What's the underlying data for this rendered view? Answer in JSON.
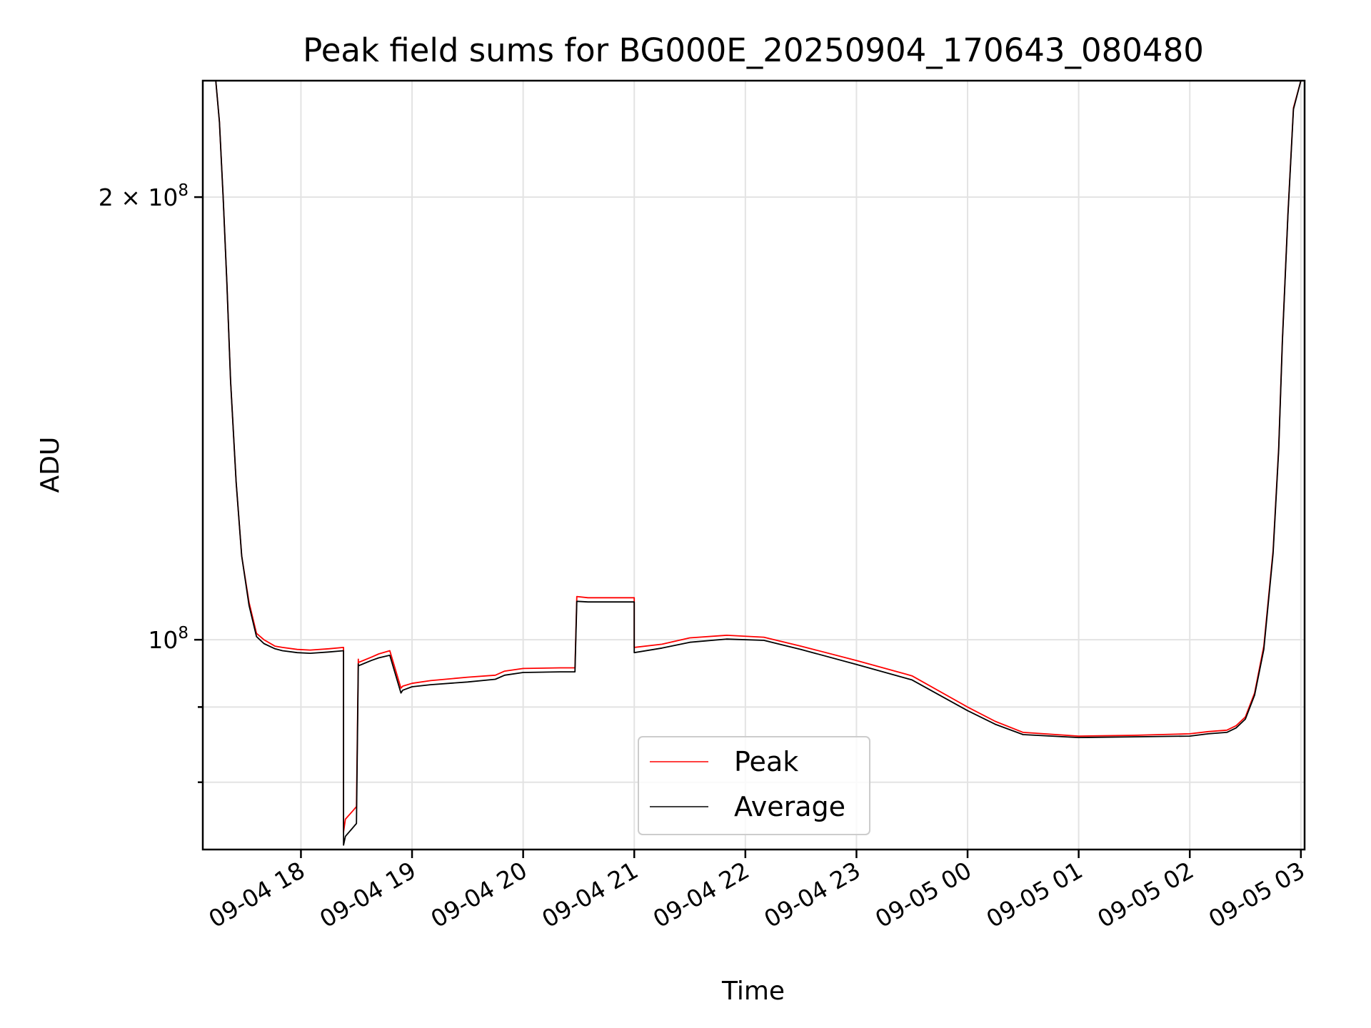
{
  "chart_data": {
    "type": "line",
    "title": "Peak field sums for BG000E_20250904_170643_080480",
    "xlabel": "Time",
    "ylabel": "ADU",
    "y_scale": "log",
    "grid": true,
    "legend_position": "lower center",
    "xlim": [
      "2025-09-04 17:07",
      "2025-09-05 03:02"
    ],
    "ylim": [
      72000000,
      240000000
    ],
    "x_ticks": [
      "09-04 18",
      "09-04 19",
      "09-04 20",
      "09-04 21",
      "09-04 22",
      "09-04 23",
      "09-05 00",
      "09-05 01",
      "09-05 02",
      "09-05 03"
    ],
    "x_tick_times": [
      "2025-09-04 18:00",
      "2025-09-04 19:00",
      "2025-09-04 20:00",
      "2025-09-04 21:00",
      "2025-09-04 22:00",
      "2025-09-04 23:00",
      "2025-09-05 00:00",
      "2025-09-05 01:00",
      "2025-09-05 02:00",
      "2025-09-05 03:00"
    ],
    "y_tick_labels": [
      {
        "value": 200000000,
        "mantissa": "2",
        "exp": "8"
      },
      {
        "value": 100000000,
        "mantissa": "",
        "exp": "8"
      }
    ],
    "y_minor_ticks": [
      80000000,
      90000000
    ],
    "series": [
      {
        "name": "Peak",
        "color": "#ff0000",
        "x": [
          "2025-09-04 17:07",
          "2025-09-04 17:14",
          "2025-09-04 17:16",
          "2025-09-04 17:18",
          "2025-09-04 17:20",
          "2025-09-04 17:22",
          "2025-09-04 17:25",
          "2025-09-04 17:28",
          "2025-09-04 17:32",
          "2025-09-04 17:36",
          "2025-09-04 17:40",
          "2025-09-04 17:46",
          "2025-09-04 17:50",
          "2025-09-04 17:58",
          "2025-09-04 18:05",
          "2025-09-04 18:15",
          "2025-09-04 18:23",
          "2025-09-04 18:23",
          "2025-09-04 18:24",
          "2025-09-04 18:28",
          "2025-09-04 18:30",
          "2025-09-04 18:31",
          "2025-09-04 18:31",
          "2025-09-04 18:38",
          "2025-09-04 18:42",
          "2025-09-04 18:48",
          "2025-09-04 18:54",
          "2025-09-04 18:55",
          "2025-09-04 19:00",
          "2025-09-04 19:10",
          "2025-09-04 19:30",
          "2025-09-04 19:45",
          "2025-09-04 19:50",
          "2025-09-04 20:00",
          "2025-09-04 20:20",
          "2025-09-04 20:28",
          "2025-09-04 20:29",
          "2025-09-04 20:35",
          "2025-09-04 21:00",
          "2025-09-04 21:00",
          "2025-09-04 21:15",
          "2025-09-04 21:30",
          "2025-09-04 21:50",
          "2025-09-04 22:10",
          "2025-09-04 22:30",
          "2025-09-04 23:00",
          "2025-09-04 23:30",
          "2025-09-05 00:00",
          "2025-09-05 00:15",
          "2025-09-05 00:30",
          "2025-09-05 01:00",
          "2025-09-05 01:30",
          "2025-09-05 02:00",
          "2025-09-05 02:10",
          "2025-09-05 02:20",
          "2025-09-05 02:25",
          "2025-09-05 02:30",
          "2025-09-05 02:35",
          "2025-09-05 02:40",
          "2025-09-05 02:45",
          "2025-09-05 02:48",
          "2025-09-05 02:50",
          "2025-09-05 02:53",
          "2025-09-05 02:56",
          "2025-09-05 03:00",
          "2025-09-05 03:02"
        ],
        "y": [
          240000000,
          240000000,
          225000000,
          200000000,
          175000000,
          150000000,
          128000000,
          114000000,
          106000000,
          101000000,
          100000000,
          99000000,
          98800000,
          98500000,
          98400000,
          98600000,
          98800000,
          74000000,
          75500000,
          76500000,
          77000000,
          97000000,
          96500000,
          97300000,
          97800000,
          98300000,
          92700000,
          93000000,
          93400000,
          93800000,
          94300000,
          94600000,
          95200000,
          95600000,
          95700000,
          95700000,
          107000000,
          106800000,
          106800000,
          98800000,
          99300000,
          100300000,
          100700000,
          100400000,
          99000000,
          96800000,
          94500000,
          90000000,
          88000000,
          86500000,
          86000000,
          86100000,
          86300000,
          86600000,
          86800000,
          87400000,
          88600000,
          92000000,
          99000000,
          115000000,
          135000000,
          160000000,
          195000000,
          230000000,
          240000000,
          240000000
        ]
      },
      {
        "name": "Average",
        "color": "#000000",
        "x": [
          "2025-09-04 17:07",
          "2025-09-04 17:14",
          "2025-09-04 17:16",
          "2025-09-04 17:18",
          "2025-09-04 17:20",
          "2025-09-04 17:22",
          "2025-09-04 17:25",
          "2025-09-04 17:28",
          "2025-09-04 17:32",
          "2025-09-04 17:36",
          "2025-09-04 17:40",
          "2025-09-04 17:46",
          "2025-09-04 17:50",
          "2025-09-04 17:58",
          "2025-09-04 18:05",
          "2025-09-04 18:15",
          "2025-09-04 18:23",
          "2025-09-04 18:23",
          "2025-09-04 18:24",
          "2025-09-04 18:28",
          "2025-09-04 18:30",
          "2025-09-04 18:31",
          "2025-09-04 18:31",
          "2025-09-04 18:38",
          "2025-09-04 18:42",
          "2025-09-04 18:48",
          "2025-09-04 18:54",
          "2025-09-04 18:55",
          "2025-09-04 19:00",
          "2025-09-04 19:10",
          "2025-09-04 19:30",
          "2025-09-04 19:45",
          "2025-09-04 19:50",
          "2025-09-04 20:00",
          "2025-09-04 20:20",
          "2025-09-04 20:28",
          "2025-09-04 20:29",
          "2025-09-04 20:35",
          "2025-09-04 21:00",
          "2025-09-04 21:00",
          "2025-09-04 21:15",
          "2025-09-04 21:30",
          "2025-09-04 21:50",
          "2025-09-04 22:10",
          "2025-09-04 22:30",
          "2025-09-04 23:00",
          "2025-09-04 23:30",
          "2025-09-05 00:00",
          "2025-09-05 00:15",
          "2025-09-05 00:30",
          "2025-09-05 01:00",
          "2025-09-05 01:30",
          "2025-09-05 02:00",
          "2025-09-05 02:10",
          "2025-09-05 02:20",
          "2025-09-05 02:25",
          "2025-09-05 02:30",
          "2025-09-05 02:35",
          "2025-09-05 02:40",
          "2025-09-05 02:45",
          "2025-09-05 02:48",
          "2025-09-05 02:50",
          "2025-09-05 02:53",
          "2025-09-05 02:56",
          "2025-09-05 03:00",
          "2025-09-05 03:02"
        ],
        "y": [
          240000000,
          240000000,
          225000000,
          200000000,
          175000000,
          150000000,
          128000000,
          114000000,
          105500000,
          100500000,
          99400000,
          98600000,
          98300000,
          98000000,
          97900000,
          98100000,
          98300000,
          72500000,
          73500000,
          74500000,
          75000000,
          96300000,
          96000000,
          96800000,
          97200000,
          97600000,
          92000000,
          92400000,
          92900000,
          93200000,
          93600000,
          94000000,
          94600000,
          95000000,
          95100000,
          95100000,
          106200000,
          106100000,
          106100000,
          98000000,
          98700000,
          99600000,
          100100000,
          99900000,
          98500000,
          96200000,
          93900000,
          89500000,
          87600000,
          86200000,
          85800000,
          85900000,
          86000000,
          86300000,
          86500000,
          87100000,
          88300000,
          91700000,
          98500000,
          114500000,
          134500000,
          159500000,
          194500000,
          229500000,
          240000000,
          240000000
        ]
      }
    ]
  }
}
